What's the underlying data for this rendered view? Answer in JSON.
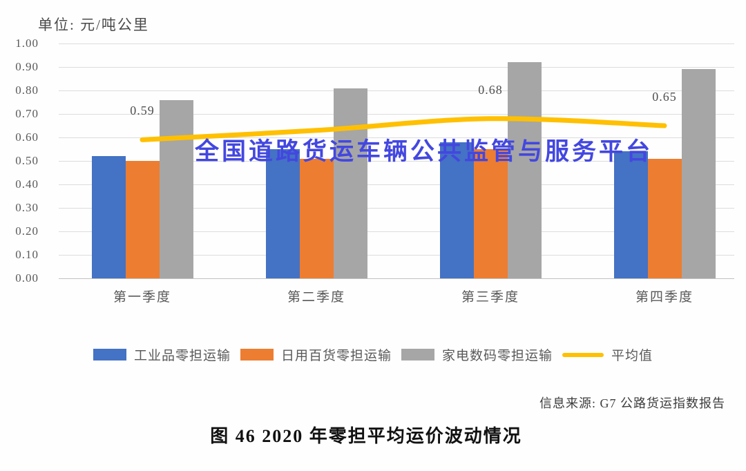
{
  "figure": {
    "unit_label": "单位: 元/吨公里",
    "watermark": "全国道路货运车辆公共监管与服务平台",
    "source": "信息来源: G7 公路货运指数报告",
    "caption": "图 46  2020 年零担平均运价波动情况"
  },
  "chart_data": {
    "type": "bar",
    "title": "2020年零担平均运价波动情况",
    "unit": "元/吨公里",
    "categories": [
      "第一季度",
      "第二季度",
      "第三季度",
      "第四季度"
    ],
    "series": [
      {
        "name": "工业品零担运输",
        "type": "bar",
        "color": "#4472C4",
        "values": [
          0.52,
          0.55,
          0.58,
          0.54
        ]
      },
      {
        "name": "日用百货零担运输",
        "type": "bar",
        "color": "#ED7D31",
        "values": [
          0.5,
          0.51,
          0.55,
          0.51
        ]
      },
      {
        "name": "家电数码零担运输",
        "type": "bar",
        "color": "#A6A6A6",
        "values": [
          0.76,
          0.81,
          0.92,
          0.89
        ]
      },
      {
        "name": "平均值",
        "type": "line",
        "color": "#FFC000",
        "values": [
          0.59,
          0.63,
          0.68,
          0.65
        ],
        "point_labels": [
          "0.59",
          "",
          "0.68",
          "0.65"
        ]
      }
    ],
    "ylim": [
      0,
      1
    ],
    "y_ticks": [
      "1.00",
      "0.90",
      "0.80",
      "0.70",
      "0.60",
      "0.50",
      "0.40",
      "0.30",
      "0.20",
      "0.10",
      "0.00"
    ],
    "grid": true,
    "legend_position": "bottom"
  }
}
